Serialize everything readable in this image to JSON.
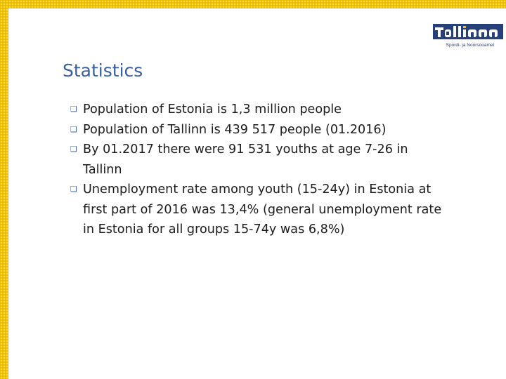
{
  "logo": {
    "wordmark": "Tallinn",
    "subtitle": "Spordi- ja Noorsooamet",
    "brand_color": "#27407a"
  },
  "title": "Statistics",
  "bullets": [
    "Population of Estonia is 1,3 million people",
    "Population of Tallinn is 439 517 people (01.2016)",
    "By 01.2017 there were 91 531 youths at age 7-26 in Tallinn",
    "Unemployment rate among youth (15-24y) in Estonia at first part of 2016 was 13,4% (general unemployment rate in Estonia for all groups 15-74y was 6,8%)"
  ],
  "colors": {
    "frame": "#f4c400",
    "title": "#3a5f9e",
    "text": "#1c1c1c"
  }
}
